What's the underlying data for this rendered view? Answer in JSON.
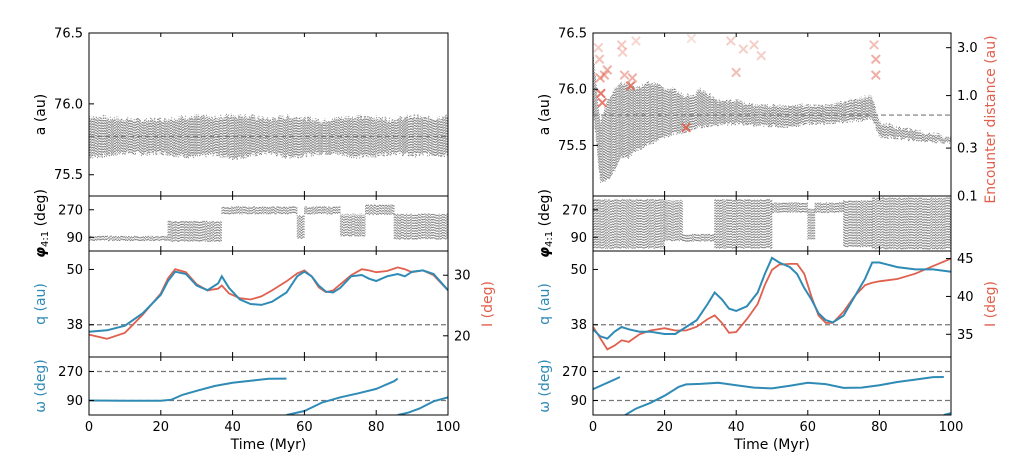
{
  "chart_data": [
    {
      "type": "scatter",
      "panel": "left",
      "xlabel": "Time (Myr)",
      "xlim": [
        0,
        100
      ],
      "xticks": [
        "0",
        "20",
        "40",
        "60",
        "80",
        "100"
      ],
      "subplots": {
        "a": {
          "ylabel": "a (au)",
          "ylim": [
            75.35,
            76.5
          ],
          "yticks": [
            {
              "v": 76.5,
              "t": "76.5"
            },
            {
              "v": 76.0,
              "t": "76.0"
            },
            {
              "v": 75.5,
              "t": "75.5"
            }
          ],
          "ref": 75.77,
          "x": [
            0,
            5,
            10,
            15,
            20,
            25,
            30,
            35,
            40,
            45,
            50,
            55,
            60,
            65,
            70,
            75,
            80,
            85,
            90,
            95,
            100
          ],
          "y_low": [
            75.63,
            75.64,
            75.66,
            75.65,
            75.66,
            75.64,
            75.63,
            75.65,
            75.62,
            75.64,
            75.66,
            75.63,
            75.64,
            75.66,
            75.65,
            75.63,
            75.64,
            75.66,
            75.64,
            75.65,
            75.64
          ],
          "y_high": [
            75.91,
            75.9,
            75.89,
            75.88,
            75.89,
            75.9,
            75.91,
            75.9,
            75.92,
            75.91,
            75.89,
            75.91,
            75.9,
            75.88,
            75.9,
            75.91,
            75.9,
            75.89,
            75.91,
            75.9,
            75.91
          ]
        },
        "phi": {
          "ylabel_main": "φ",
          "ylabel_sub": "4:1",
          "ylabel_unit": " (deg)",
          "ylim": [
            0,
            360
          ],
          "yticks": [
            {
              "v": 90,
              "t": "90"
            },
            {
              "v": 270,
              "t": "270"
            }
          ],
          "segments": [
            {
              "x0": 0,
              "x1": 22,
              "center": 85,
              "width": 30
            },
            {
              "x0": 22,
              "x1": 37,
              "center": 130,
              "width": 130
            },
            {
              "x0": 37,
              "x1": 58,
              "center": 270,
              "width": 50
            },
            {
              "x0": 58,
              "x1": 60,
              "center": 160,
              "width": 150
            },
            {
              "x0": 60,
              "x1": 70,
              "center": 270,
              "width": 50
            },
            {
              "x0": 70,
              "x1": 77,
              "center": 170,
              "width": 140
            },
            {
              "x0": 77,
              "x1": 85,
              "center": 270,
              "width": 60
            },
            {
              "x0": 85,
              "x1": 100,
              "center": 160,
              "width": 160
            }
          ]
        },
        "qi": {
          "ylabel_left": "q (au)",
          "ylabel_right": "I (deg)",
          "ylim_left": [
            31,
            54
          ],
          "ylim_right": [
            16.5,
            34
          ],
          "yticks_left": [
            {
              "v": 50,
              "t": "50"
            },
            {
              "v": 38,
              "t": "38"
            }
          ],
          "yticks_right": [
            {
              "v": 30,
              "t": "30"
            },
            {
              "v": 20,
              "t": "20"
            }
          ],
          "ref_left": 38,
          "x": [
            0,
            5,
            10,
            15,
            20,
            22,
            24,
            27,
            30,
            33,
            36,
            37,
            39,
            42,
            45,
            48,
            51,
            55,
            58,
            60,
            62,
            64,
            66,
            68,
            70,
            73,
            76,
            78,
            80,
            83,
            86,
            88,
            90,
            93,
            96,
            100
          ],
          "q": [
            36.5,
            36.8,
            37.8,
            40.5,
            44.5,
            47.5,
            49.5,
            49.0,
            46.5,
            45.5,
            47.0,
            48.5,
            46.0,
            43.5,
            42.5,
            42.3,
            43.0,
            45.0,
            48.5,
            49.5,
            48.5,
            46.5,
            45.2,
            45.0,
            46.0,
            48.5,
            48.8,
            48.0,
            47.5,
            48.5,
            49.0,
            48.5,
            49.5,
            49.8,
            49.0,
            45.5
          ],
          "inc": [
            20.2,
            19.5,
            20.5,
            23.5,
            27.0,
            29.5,
            31.0,
            30.5,
            28.5,
            27.5,
            27.8,
            28.3,
            27.0,
            26.2,
            26.0,
            26.5,
            27.5,
            29.0,
            30.3,
            30.8,
            29.8,
            28.0,
            27.2,
            27.5,
            28.5,
            30.0,
            31.0,
            30.8,
            30.5,
            30.7,
            31.3,
            31.0,
            30.5,
            30.8,
            30.0,
            27.5
          ]
        },
        "omega": {
          "ylabel": "ω (deg)",
          "ylim": [
            0,
            360
          ],
          "yticks": [
            {
              "v": 90,
              "t": "90"
            },
            {
              "v": 270,
              "t": "270"
            }
          ],
          "refs": [
            90,
            270
          ],
          "branches": [
            {
              "x": [
                0,
                10,
                20,
                23,
                26,
                30,
                35,
                40,
                45,
                50,
                55
              ],
              "y": [
                90,
                89,
                88,
                95,
                125,
                150,
                180,
                200,
                212,
                225,
                226
              ]
            },
            {
              "x": [
                55,
                60,
                65,
                70,
                75,
                80,
                85,
                86
              ],
              "y": [
                0,
                25,
                78,
                110,
                135,
                162,
                210,
                226
              ]
            },
            {
              "x": [
                86,
                89,
                92,
                96,
                100
              ],
              "y": [
                0,
                15,
                40,
                85,
                110
              ]
            }
          ]
        }
      }
    },
    {
      "type": "scatter",
      "panel": "right",
      "xlabel": "Time (Myr)",
      "xlim": [
        0,
        100
      ],
      "xticks": [
        "0",
        "20",
        "40",
        "60",
        "80",
        "100"
      ],
      "subplots": {
        "a": {
          "ylabel": "a (au)",
          "ylabel_right": "Encounter distance (au)",
          "ylim": [
            75.05,
            76.5
          ],
          "yticks": [
            {
              "v": 76.5,
              "t": "76.5"
            },
            {
              "v": 76.0,
              "t": "76.0"
            },
            {
              "v": 75.5,
              "t": "75.5"
            }
          ],
          "yticks_right": [
            {
              "v": 3.0,
              "t": "3.0"
            },
            {
              "v": 1.0,
              "t": "1.0"
            },
            {
              "v": 0.3,
              "t": "0.3"
            },
            {
              "v": 0.1,
              "t": "0.1"
            }
          ],
          "ylim_right_log": [
            0.1,
            4.2
          ],
          "ref": 75.77,
          "x": [
            0,
            2,
            4,
            6,
            8,
            10,
            12,
            15,
            18,
            20,
            22,
            25,
            28,
            30,
            35,
            40,
            45,
            50,
            55,
            60,
            65,
            70,
            75,
            78,
            80,
            85,
            90,
            95,
            100
          ],
          "y_low": [
            75.85,
            75.18,
            75.2,
            75.28,
            75.4,
            75.4,
            75.46,
            75.5,
            75.55,
            75.58,
            75.6,
            75.62,
            75.66,
            75.67,
            75.69,
            75.7,
            75.68,
            75.68,
            75.67,
            75.7,
            75.7,
            75.71,
            75.73,
            75.75,
            75.58,
            75.57,
            75.55,
            75.54,
            75.53
          ],
          "y_high": [
            76.35,
            75.7,
            75.9,
            76.0,
            76.05,
            76.05,
            76.0,
            76.05,
            76.05,
            76.0,
            76.0,
            75.95,
            75.95,
            76.0,
            75.9,
            75.9,
            75.85,
            75.85,
            75.85,
            75.86,
            75.86,
            75.88,
            75.92,
            75.94,
            75.7,
            75.66,
            75.63,
            75.6,
            75.57
          ],
          "encounters": [
            {
              "x": 1.5,
              "d": 3.0,
              "o": 0.3
            },
            {
              "x": 1.8,
              "d": 2.3,
              "o": 0.4
            },
            {
              "x": 2.0,
              "d": 1.5,
              "o": 0.55
            },
            {
              "x": 2.2,
              "d": 1.05,
              "o": 0.85
            },
            {
              "x": 2.6,
              "d": 0.85,
              "o": 0.8
            },
            {
              "x": 3.2,
              "d": 1.6,
              "o": 0.5
            },
            {
              "x": 4.0,
              "d": 1.8,
              "o": 0.5
            },
            {
              "x": 8.0,
              "d": 3.2,
              "o": 0.35
            },
            {
              "x": 8.3,
              "d": 2.7,
              "o": 0.3
            },
            {
              "x": 8.8,
              "d": 1.6,
              "o": 0.45
            },
            {
              "x": 10.5,
              "d": 1.25,
              "o": 0.8
            },
            {
              "x": 11.0,
              "d": 1.5,
              "o": 0.5
            },
            {
              "x": 12.0,
              "d": 3.5,
              "o": 0.25
            },
            {
              "x": 26.0,
              "d": 0.48,
              "o": 0.9
            },
            {
              "x": 27.5,
              "d": 3.7,
              "o": 0.2
            },
            {
              "x": 38.5,
              "d": 3.5,
              "o": 0.3
            },
            {
              "x": 40.0,
              "d": 1.7,
              "o": 0.4
            },
            {
              "x": 42.0,
              "d": 2.9,
              "o": 0.3
            },
            {
              "x": 45.0,
              "d": 3.2,
              "o": 0.3
            },
            {
              "x": 47.0,
              "d": 2.5,
              "o": 0.3
            },
            {
              "x": 78.5,
              "d": 3.2,
              "o": 0.4
            },
            {
              "x": 79.0,
              "d": 2.3,
              "o": 0.5
            },
            {
              "x": 79.0,
              "d": 1.6,
              "o": 0.5
            }
          ]
        },
        "phi": {
          "ylabel_main": "φ",
          "ylabel_sub": "4:1",
          "ylabel_unit": " (deg)",
          "ylim": [
            0,
            360
          ],
          "yticks": [
            {
              "v": 90,
              "t": "90"
            },
            {
              "v": 270,
              "t": "270"
            }
          ],
          "segments": [
            {
              "x0": 0,
              "x1": 20,
              "center": 180,
              "width": 320
            },
            {
              "x0": 20,
              "x1": 25,
              "center": 200,
              "width": 260
            },
            {
              "x0": 25,
              "x1": 34,
              "center": 90,
              "width": 50
            },
            {
              "x0": 34,
              "x1": 50,
              "center": 180,
              "width": 320
            },
            {
              "x0": 50,
              "x1": 60,
              "center": 285,
              "width": 60
            },
            {
              "x0": 60,
              "x1": 62,
              "center": 180,
              "width": 200
            },
            {
              "x0": 62,
              "x1": 70,
              "center": 285,
              "width": 60
            },
            {
              "x0": 70,
              "x1": 78,
              "center": 180,
              "width": 300
            },
            {
              "x0": 78,
              "x1": 100,
              "center": 180,
              "width": 330
            }
          ]
        },
        "qi": {
          "ylabel_left": "q (au)",
          "ylabel_right": "I (deg)",
          "ylim_left": [
            31,
            54
          ],
          "ylim_right": [
            32,
            46
          ],
          "yticks_left": [
            {
              "v": 50,
              "t": "50"
            },
            {
              "v": 38,
              "t": "38"
            }
          ],
          "yticks_right": [
            {
              "v": 45,
              "t": "45"
            },
            {
              "v": 40,
              "t": "40"
            },
            {
              "v": 35,
              "t": "35"
            }
          ],
          "ref_left": 38,
          "x": [
            0,
            2,
            4,
            6,
            8,
            10,
            13,
            16,
            20,
            23,
            26,
            29,
            32,
            34,
            36,
            38,
            40,
            43,
            46,
            48,
            50,
            52,
            55,
            57,
            59,
            61,
            63,
            65,
            67,
            70,
            73,
            76,
            78,
            80,
            85,
            90,
            95,
            100
          ],
          "q": [
            37.0,
            35.5,
            35.0,
            36.5,
            37.5,
            37.0,
            36.5,
            36.5,
            36.0,
            36.0,
            37.5,
            39.0,
            42.5,
            45.0,
            43.5,
            41.5,
            41.0,
            42.0,
            45.0,
            49.0,
            52.5,
            51.5,
            50.5,
            49.0,
            46.0,
            43.5,
            40.5,
            39.0,
            38.5,
            40.0,
            44.0,
            48.0,
            51.5,
            51.5,
            50.5,
            50.0,
            50.0,
            49.5
          ],
          "inc": [
            36.0,
            34.5,
            33.0,
            33.5,
            34.2,
            34.0,
            35.0,
            35.5,
            35.8,
            35.5,
            35.5,
            36.0,
            37.0,
            37.5,
            36.5,
            35.2,
            35.3,
            37.0,
            39.0,
            41.5,
            43.5,
            44.2,
            44.3,
            44.3,
            43.0,
            40.0,
            37.5,
            36.5,
            36.5,
            38.0,
            40.0,
            41.5,
            41.8,
            42.0,
            42.3,
            43.0,
            44.0,
            45.0
          ]
        },
        "omega": {
          "ylabel": "ω (deg)",
          "ylim": [
            0,
            360
          ],
          "yticks": [
            {
              "v": 90,
              "t": "90"
            },
            {
              "v": 270,
              "t": "270"
            }
          ],
          "refs": [
            90,
            270
          ],
          "branches": [
            {
              "x": [
                0,
                3,
                6,
                7.5
              ],
              "y": [
                160,
                190,
                220,
                236
              ]
            },
            {
              "x": [
                9,
                12,
                16,
                20,
                24,
                26,
                30,
                35,
                40,
                45,
                50,
                55,
                60,
                65,
                70,
                75,
                80,
                85,
                90,
                95,
                98
              ],
              "y": [
                0,
                40,
                75,
                120,
                175,
                190,
                193,
                200,
                185,
                170,
                165,
                182,
                200,
                192,
                168,
                170,
                185,
                205,
                220,
                235,
                236
              ]
            },
            {
              "x": [
                98,
                100
              ],
              "y": [
                0,
                12
              ]
            }
          ]
        }
      }
    }
  ]
}
